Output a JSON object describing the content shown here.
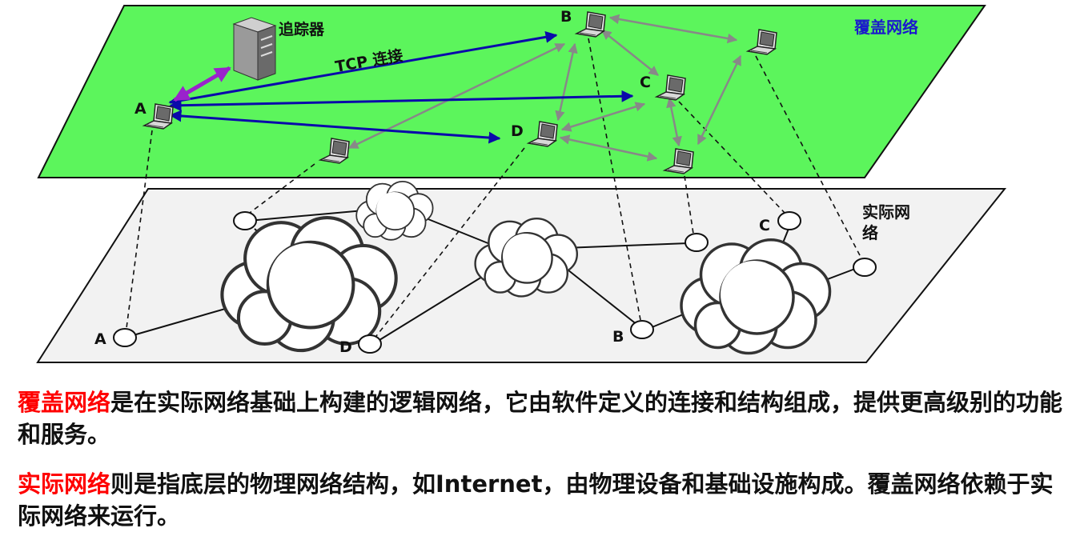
{
  "overlay_title": "覆盖网络",
  "physical_title": "实际网络",
  "tracker_label": "追踪器",
  "tcp_label": "TCP 连接",
  "overlay_nodes": {
    "A": "A",
    "B": "B",
    "C": "C",
    "D": "D"
  },
  "physical_nodes": {
    "A": "A",
    "B": "B",
    "C": "C",
    "D": "D"
  },
  "caption1": {
    "highlight": "覆盖网络",
    "text": "是在实际网络基础上构建的逻辑网络，它由软件定义的连接和结构组成，提供更高级别的功能和服务。"
  },
  "caption2": {
    "highlight": "实际网络",
    "text1": "则是指底层的物理网络结构，如Internet，由物理设备和基础设施构成。",
    "text2": "覆盖网络依赖于实际网络来运行。"
  },
  "colors": {
    "overlay_plane": "#5cf55c",
    "physical_plane": "#f2f2f2",
    "tcp_arrow": "#0a0aaa",
    "tracker_arrow": "#9a22cc",
    "peer_arrow": "#888888",
    "highlight_text": "#ff0000",
    "overlay_title": "#1a1acc"
  }
}
